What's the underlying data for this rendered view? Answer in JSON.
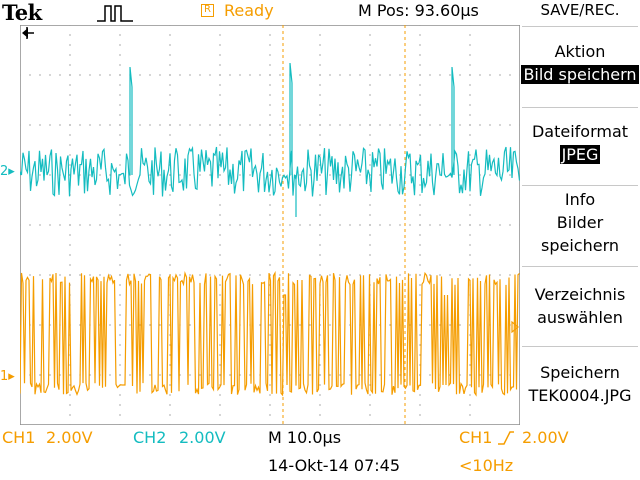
{
  "header": {
    "brand": "Tek",
    "trigger_icon": "pulse-trigger-icon",
    "ready_box_glyph": "R",
    "run_status": "Ready",
    "m_pos": "M Pos: 93.60µs",
    "menu_title": "SAVE/REC."
  },
  "side_menu": {
    "action_label": "Aktion",
    "action_value": "Bild speichern",
    "format_label": "Dateiformat",
    "format_value": "JPEG",
    "info_line1": "Info",
    "info_line2": "Bilder",
    "info_line3": "speichern",
    "dir_line1": "Verzeichnis",
    "dir_line2": "auswählen",
    "save_line1": "Speichern",
    "save_line2": "TEK0004.JPG"
  },
  "channels": {
    "ch1": {
      "label": "CH1",
      "scale": "2.00V",
      "marker": "1",
      "color": "#f59d00"
    },
    "ch2": {
      "label": "CH2",
      "scale": "2.00V",
      "marker": "2",
      "color": "#14bcc0"
    }
  },
  "timebase": "M 10.0µs",
  "trigger": {
    "source": "CH1",
    "slope_icon": "rising-edge-icon",
    "level": "2.00V",
    "freq": "<10Hz"
  },
  "datetime": "14-Okt-14 07:45",
  "colors": {
    "ch1": "#f59d00",
    "ch2": "#14bcc0",
    "grid": "#8c8c8c",
    "cursor": "#f59d00"
  }
}
